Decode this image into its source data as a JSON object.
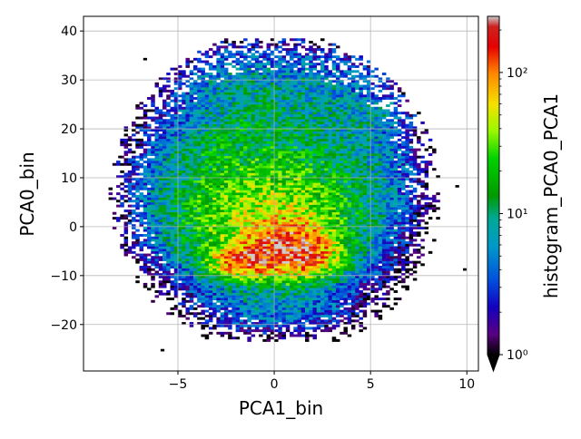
{
  "chart_data": {
    "type": "heatmap",
    "title": "",
    "xlabel": "PCA1_bin",
    "ylabel": "PCA0_bin",
    "colorbar_label": "histogram_PCA0_PCA1",
    "xlim": [
      -9.9,
      10.6
    ],
    "ylim": [
      -29.5,
      43.0
    ],
    "x_ticks": [
      -5,
      0,
      5,
      10
    ],
    "x_tick_labels": [
      "−5",
      "0",
      "5",
      "10"
    ],
    "y_ticks": [
      -20,
      -10,
      0,
      10,
      20,
      30,
      40
    ],
    "y_tick_labels": [
      "−20",
      "−10",
      "0",
      "10",
      "20",
      "30",
      "40"
    ],
    "grid": true,
    "color_scale": "log",
    "colormap": "nipy_spectral",
    "color_range": [
      1,
      250
    ],
    "colorbar_ticks": [
      1,
      10,
      100
    ],
    "colorbar_tick_labels": [
      "10⁰",
      "10¹",
      "10²"
    ],
    "colorbar_extend": "min",
    "bin_size": [
      0.2,
      0.5
    ],
    "density_description_points": [
      {
        "x": 0.5,
        "y": -4,
        "count": 250
      },
      {
        "x": -1.5,
        "y": -7,
        "count": 140
      },
      {
        "x": 1.5,
        "y": -6,
        "count": 120
      },
      {
        "x": 0,
        "y": 0,
        "count": 80
      },
      {
        "x": -2,
        "y": 5,
        "count": 30
      },
      {
        "x": 0,
        "y": 15,
        "count": 15
      },
      {
        "x": 2,
        "y": 25,
        "count": 5
      },
      {
        "x": -2.5,
        "y": 33,
        "count": 6
      },
      {
        "x": 4,
        "y": 5,
        "count": 5
      },
      {
        "x": -5,
        "y": 5,
        "count": 3
      },
      {
        "x": 0,
        "y": -18,
        "count": 5
      },
      {
        "x": 6,
        "y": 22,
        "count": 4
      }
    ]
  }
}
